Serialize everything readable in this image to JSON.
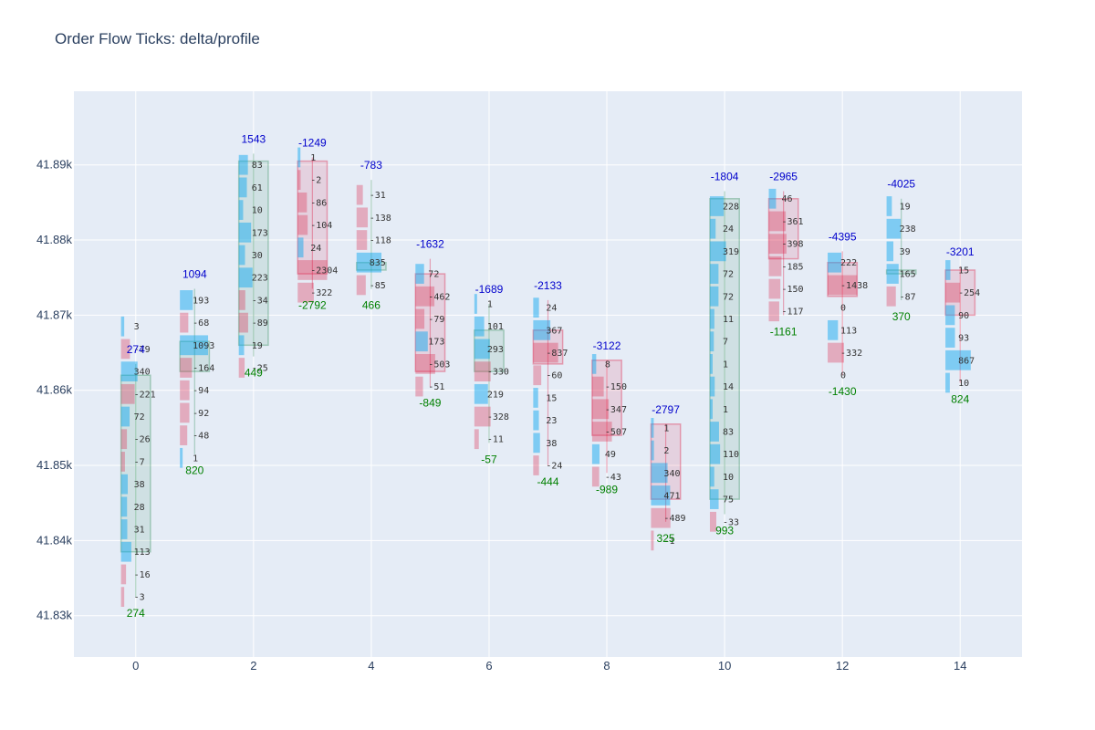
{
  "title": "Order Flow Ticks: delta/profile",
  "chart_data": {
    "type": "bar",
    "title": "Order Flow Ticks: delta/profile",
    "xlim": [
      -1.05,
      15.05
    ],
    "ylim": [
      41824.5,
      41899.8
    ],
    "xticks": [
      0,
      2,
      4,
      6,
      8,
      10,
      12,
      14
    ],
    "xtick_labels": [
      "0",
      "2",
      "4",
      "6",
      "8",
      "10",
      "12",
      "14"
    ],
    "yticks": [
      41830,
      41840,
      41850,
      41860,
      41870,
      41880,
      41890
    ],
    "ytick_labels": [
      "41.83k",
      "41.84k",
      "41.85k",
      "41.86k",
      "41.87k",
      "41.88k",
      "41.89k"
    ],
    "grid": true,
    "colors": {
      "plot_bg": "#e5ecf6",
      "grid": "#ffffff",
      "up_body": "#2e8b57",
      "down_body": "#dc143c",
      "buy_bar": "#00a5ef",
      "sell_bar": "#dc143c",
      "cum_delta_text": "#0000cc",
      "delta_text": "#008000"
    },
    "candles": [
      {
        "x": 0,
        "open": 41838.5,
        "close": 41862,
        "high": 41863.5,
        "low": 41832.5,
        "direction": "up",
        "delta": "274",
        "cum_delta": "274",
        "levels": [
          {
            "y": 41868.5,
            "label": "3"
          },
          {
            "y": 41865.5,
            "label": "-79"
          },
          {
            "y": 41862.5,
            "label": "340"
          },
          {
            "y": 41859.5,
            "label": "-221"
          },
          {
            "y": 41856.5,
            "label": "72"
          },
          {
            "y": 41853.5,
            "label": "-26"
          },
          {
            "y": 41850.5,
            "label": "-7"
          },
          {
            "y": 41847.5,
            "label": "38"
          },
          {
            "y": 41844.5,
            "label": "28"
          },
          {
            "y": 41841.5,
            "label": "31"
          },
          {
            "y": 41838.5,
            "label": "113"
          },
          {
            "y": 41835.5,
            "label": "-16"
          },
          {
            "y": 41832.5,
            "label": "-3"
          }
        ]
      },
      {
        "x": 1,
        "open": 41862.5,
        "close": 41866.5,
        "high": 41873.5,
        "low": 41851.5,
        "direction": "up",
        "delta": "820",
        "cum_delta": "1094",
        "levels": [
          {
            "y": 41872,
            "label": "193"
          },
          {
            "y": 41869,
            "label": "-68"
          },
          {
            "y": 41866,
            "label": "1093"
          },
          {
            "y": 41863,
            "label": "-164"
          },
          {
            "y": 41860,
            "label": "-94"
          },
          {
            "y": 41857,
            "label": "-92"
          },
          {
            "y": 41854,
            "label": "-48"
          },
          {
            "y": 41851,
            "label": "1"
          }
        ]
      },
      {
        "x": 2,
        "open": 41866,
        "close": 41890.5,
        "high": 41891.5,
        "low": 41864.5,
        "direction": "up",
        "delta": "449",
        "cum_delta": "1543",
        "levels": [
          {
            "y": 41890,
            "label": "83"
          },
          {
            "y": 41887,
            "label": "61"
          },
          {
            "y": 41884,
            "label": "10"
          },
          {
            "y": 41881,
            "label": "173"
          },
          {
            "y": 41878,
            "label": "30"
          },
          {
            "y": 41875,
            "label": "223"
          },
          {
            "y": 41872,
            "label": "-34"
          },
          {
            "y": 41869,
            "label": "-89"
          },
          {
            "y": 41866,
            "label": "19"
          },
          {
            "y": 41863,
            "label": "-25"
          }
        ]
      },
      {
        "x": 3,
        "open": 41890.5,
        "close": 41875.5,
        "high": 41891,
        "low": 41873.5,
        "direction": "down",
        "delta": "-2792",
        "cum_delta": "-1249",
        "levels": [
          {
            "y": 41891,
            "label": "1"
          },
          {
            "y": 41888,
            "label": "-2"
          },
          {
            "y": 41885,
            "label": "-86"
          },
          {
            "y": 41882,
            "label": "-104"
          },
          {
            "y": 41879,
            "label": "24"
          },
          {
            "y": 41876,
            "label": "-2304"
          },
          {
            "y": 41873,
            "label": "-322"
          }
        ]
      },
      {
        "x": 4,
        "open": 41876,
        "close": 41877,
        "high": 41888,
        "low": 41873.5,
        "direction": "up",
        "delta": "466",
        "cum_delta": "-783",
        "levels": [
          {
            "y": 41886,
            "label": "-31"
          },
          {
            "y": 41883,
            "label": "-138"
          },
          {
            "y": 41880,
            "label": "-118"
          },
          {
            "y": 41877,
            "label": "835"
          },
          {
            "y": 41874,
            "label": "-85"
          }
        ]
      },
      {
        "x": 5,
        "open": 41875.5,
        "close": 41862.5,
        "high": 41877.5,
        "low": 41860.5,
        "direction": "down",
        "delta": "-849",
        "cum_delta": "-1632",
        "levels": [
          {
            "y": 41875.5,
            "label": "72"
          },
          {
            "y": 41872.5,
            "label": "-462"
          },
          {
            "y": 41869.5,
            "label": "-79"
          },
          {
            "y": 41866.5,
            "label": "173"
          },
          {
            "y": 41863.5,
            "label": "-503"
          },
          {
            "y": 41860.5,
            "label": "-51"
          }
        ]
      },
      {
        "x": 6,
        "open": 41862.5,
        "close": 41868,
        "high": 41871.5,
        "low": 41853,
        "direction": "up",
        "delta": "-57",
        "cum_delta": "-1689",
        "levels": [
          {
            "y": 41871.5,
            "label": "1"
          },
          {
            "y": 41868.5,
            "label": "101"
          },
          {
            "y": 41865.5,
            "label": "293"
          },
          {
            "y": 41862.5,
            "label": "-330"
          },
          {
            "y": 41859.5,
            "label": "219"
          },
          {
            "y": 41856.5,
            "label": "-328"
          },
          {
            "y": 41853.5,
            "label": "-11"
          }
        ]
      },
      {
        "x": 7,
        "open": 41868,
        "close": 41863.5,
        "high": 41872,
        "low": 41850,
        "direction": "down",
        "delta": "-444",
        "cum_delta": "-2133",
        "levels": [
          {
            "y": 41871,
            "label": "24"
          },
          {
            "y": 41868,
            "label": "367"
          },
          {
            "y": 41865,
            "label": "-837"
          },
          {
            "y": 41862,
            "label": "-60"
          },
          {
            "y": 41859,
            "label": "15"
          },
          {
            "y": 41856,
            "label": "23"
          },
          {
            "y": 41853,
            "label": "38"
          },
          {
            "y": 41850,
            "label": "-24"
          }
        ]
      },
      {
        "x": 8,
        "open": 41864,
        "close": 41854,
        "high": 41864,
        "low": 41849,
        "direction": "down",
        "delta": "-989",
        "cum_delta": "-3122",
        "levels": [
          {
            "y": 41863.5,
            "label": "8"
          },
          {
            "y": 41860.5,
            "label": "-150"
          },
          {
            "y": 41857.5,
            "label": "-347"
          },
          {
            "y": 41854.5,
            "label": "-507"
          },
          {
            "y": 41851.5,
            "label": "49"
          },
          {
            "y": 41848.5,
            "label": "-43"
          }
        ]
      },
      {
        "x": 9,
        "open": 41855.5,
        "close": 41845.5,
        "high": 41855.5,
        "low": 41842.5,
        "direction": "down",
        "delta": "325",
        "cum_delta": "-2797",
        "levels": [
          {
            "y": 41855,
            "label": "1"
          },
          {
            "y": 41852,
            "label": "2"
          },
          {
            "y": 41849,
            "label": "340"
          },
          {
            "y": 41846,
            "label": "471"
          },
          {
            "y": 41843,
            "label": "-489"
          },
          {
            "y": 41840,
            "label": "-1"
          }
        ]
      },
      {
        "x": 10,
        "open": 41845.5,
        "close": 41885.5,
        "high": 41886.5,
        "low": 41843.5,
        "direction": "up",
        "delta": "993",
        "cum_delta": "-1804",
        "levels": [
          {
            "y": 41884.5,
            "label": "228"
          },
          {
            "y": 41881.5,
            "label": "24"
          },
          {
            "y": 41878.5,
            "label": "319"
          },
          {
            "y": 41875.5,
            "label": "72"
          },
          {
            "y": 41872.5,
            "label": "72"
          },
          {
            "y": 41869.5,
            "label": "11"
          },
          {
            "y": 41866.5,
            "label": "7"
          },
          {
            "y": 41863.5,
            "label": "1"
          },
          {
            "y": 41860.5,
            "label": "14"
          },
          {
            "y": 41857.5,
            "label": "1"
          },
          {
            "y": 41854.5,
            "label": "83"
          },
          {
            "y": 41851.5,
            "label": "110"
          },
          {
            "y": 41848.5,
            "label": "10"
          },
          {
            "y": 41845.5,
            "label": "75"
          },
          {
            "y": 41842.5,
            "label": "-33"
          }
        ]
      },
      {
        "x": 11,
        "open": 41885.5,
        "close": 41877.5,
        "high": 41886.5,
        "low": 41870,
        "direction": "down",
        "delta": "-1161",
        "cum_delta": "-2965",
        "levels": [
          {
            "y": 41885.5,
            "label": "46"
          },
          {
            "y": 41882.5,
            "label": "-361"
          },
          {
            "y": 41879.5,
            "label": "-398"
          },
          {
            "y": 41876.5,
            "label": "-185"
          },
          {
            "y": 41873.5,
            "label": "-150"
          },
          {
            "y": 41870.5,
            "label": "-117"
          }
        ]
      },
      {
        "x": 12,
        "open": 41877,
        "close": 41872.5,
        "high": 41878.5,
        "low": 41862,
        "direction": "down",
        "delta": "-1430",
        "cum_delta": "-4395",
        "levels": [
          {
            "y": 41877,
            "label": "222"
          },
          {
            "y": 41874,
            "label": "-1438"
          },
          {
            "y": 41871,
            "label": "0"
          },
          {
            "y": 41868,
            "label": "113"
          },
          {
            "y": 41865,
            "label": "-332"
          },
          {
            "y": 41862,
            "label": "0"
          }
        ]
      },
      {
        "x": 13,
        "open": 41876,
        "close": 41875.5,
        "high": 41885.5,
        "low": 41872,
        "direction": "up",
        "delta": "370",
        "cum_delta": "-4025",
        "levels": [
          {
            "y": 41884.5,
            "label": "19"
          },
          {
            "y": 41881.5,
            "label": "238"
          },
          {
            "y": 41878.5,
            "label": "39"
          },
          {
            "y": 41875.5,
            "label": "165"
          },
          {
            "y": 41872.5,
            "label": "-87"
          }
        ]
      },
      {
        "x": 14,
        "open": 41876,
        "close": 41870,
        "high": 41876.5,
        "low": 41861,
        "direction": "down",
        "delta": "824",
        "cum_delta": "-3201",
        "levels": [
          {
            "y": 41876,
            "label": "15"
          },
          {
            "y": 41873,
            "label": "-254"
          },
          {
            "y": 41870,
            "label": "90"
          },
          {
            "y": 41867,
            "label": "93"
          },
          {
            "y": 41864,
            "label": "867"
          },
          {
            "y": 41861,
            "label": "10"
          }
        ]
      }
    ]
  }
}
